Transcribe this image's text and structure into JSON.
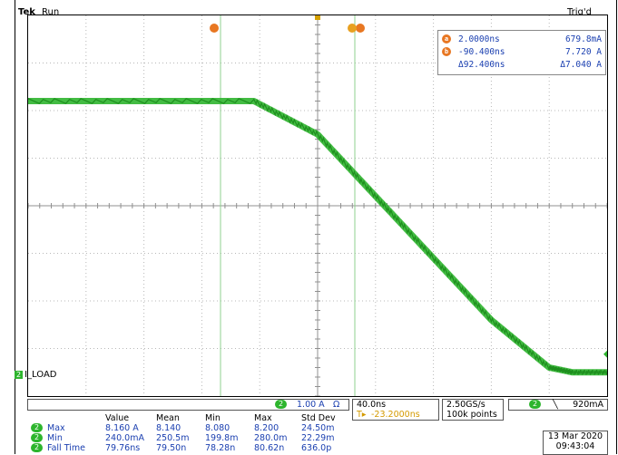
{
  "header": {
    "brand": "Tek",
    "run_state": "Run",
    "trigger_status": "Trig'd"
  },
  "cursor_markers": {
    "a_label": "a",
    "b_label": "b",
    "trigger_label": "T"
  },
  "cursor_readout": {
    "rows": [
      {
        "id": "a",
        "time": "2.0000ns",
        "value": "679.8mA"
      },
      {
        "id": "b",
        "time": "-90.400ns",
        "value": "7.720 A"
      },
      {
        "id": "",
        "time": "Δ92.400ns",
        "value": "Δ7.040 A"
      }
    ]
  },
  "channel": {
    "badge": "2",
    "label": "I_LOAD",
    "scale": "1.00 A",
    "coupling_symbol": "Ω",
    "color": "#2db52d"
  },
  "horizontal": {
    "time_div": "40.0ns",
    "trigger_offset": "-23.2000ns",
    "sample_rate": "2.50GS/s",
    "record_length": "100k points"
  },
  "trigger": {
    "source_badge": "2",
    "slope_symbol": "╲",
    "level": "920mA"
  },
  "measurements": {
    "headers": [
      "Value",
      "Mean",
      "Min",
      "Max",
      "Std Dev"
    ],
    "rows": [
      {
        "name": "Max",
        "value": "8.160 A",
        "mean": "8.140",
        "min": "8.080",
        "max": "8.200",
        "std": "24.50m"
      },
      {
        "name": "Min",
        "value": "240.0mA",
        "mean": "250.5m",
        "min": "199.8m",
        "max": "280.0m",
        "std": "22.29m"
      },
      {
        "name": "Fall Time",
        "value": "79.76ns",
        "mean": "79.50n",
        "min": "78.28n",
        "max": "80.62n",
        "std": "636.0p"
      }
    ]
  },
  "datetime": {
    "date": "13 Mar 2020",
    "time": "09:43:04"
  },
  "chart_data": {
    "type": "line",
    "series": [
      {
        "values_desc": "waveform",
        "x": [
          -5,
          -1.1,
          0,
          1,
          2,
          3,
          4,
          4.4,
          5
        ],
        "y": [
          2.2,
          2.2,
          1.5,
          0.2,
          -1.1,
          -2.4,
          -3.4,
          -3.5,
          -3.5
        ]
      }
    ],
    "xlim": [
      -5,
      5
    ],
    "ylim": [
      -4,
      4
    ]
  }
}
